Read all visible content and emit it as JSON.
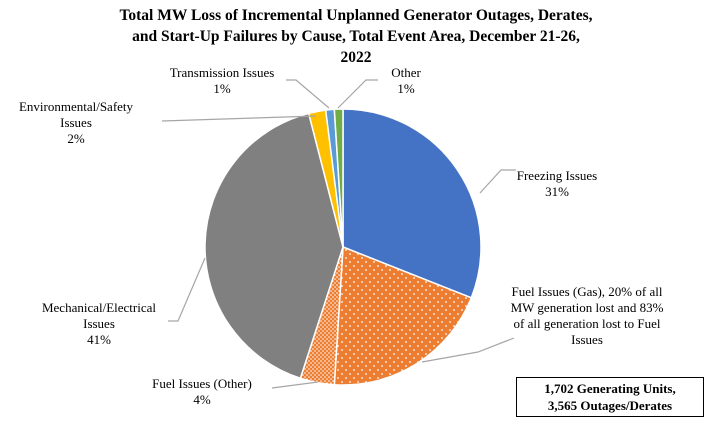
{
  "chart_data": {
    "type": "pie",
    "title_lines": [
      "Total MW Loss of Incremental Unplanned Generator Outages, Derates,",
      "and Start-Up Failures by Cause, Total Event Area,  December 21-26,",
      "2022"
    ],
    "slices": [
      {
        "name_lines": [
          "Freezing Issues"
        ],
        "pct_label": "31%",
        "value": 31,
        "color": "#4472C4",
        "pattern": "none"
      },
      {
        "name_lines": [
          "Fuel Issues (Gas), 20% of all",
          "MW generation  lost and 83%",
          "of all generation lost to Fuel",
          "Issues"
        ],
        "pct_label": "",
        "value": 20,
        "color": "#ED7D31",
        "pattern": "dots"
      },
      {
        "name_lines": [
          "Fuel Issues (Other)"
        ],
        "pct_label": "4%",
        "value": 4,
        "color": "#ED7D31",
        "pattern": "dense"
      },
      {
        "name_lines": [
          "Mechanical/Electrical",
          "Issues"
        ],
        "pct_label": "41%",
        "value": 41,
        "color": "#808080",
        "pattern": "none"
      },
      {
        "name_lines": [
          "Environmental/Safety",
          "Issues"
        ],
        "pct_label": "2%",
        "value": 2,
        "color": "#FFC000",
        "pattern": "none"
      },
      {
        "name_lines": [
          "Transmission Issues"
        ],
        "pct_label": "1%",
        "value": 1,
        "color": "#5B9BD5",
        "pattern": "none"
      },
      {
        "name_lines": [
          "Other"
        ],
        "pct_label": "1%",
        "value": 1,
        "color": "#70AD47",
        "pattern": "none"
      }
    ]
  },
  "note": {
    "lines": [
      "1,702 Generating Units,",
      "3,565 Outages/Derates"
    ]
  }
}
